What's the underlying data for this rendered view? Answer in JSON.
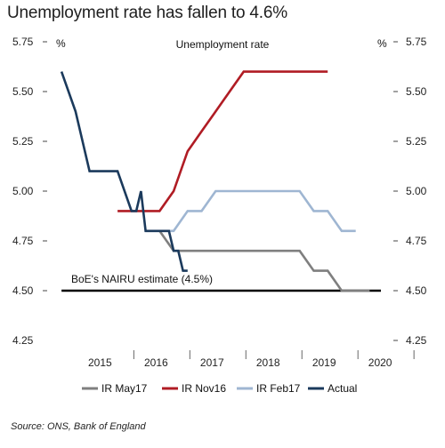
{
  "header": {
    "title": "Unemployment rate has fallen to 4.6%"
  },
  "footer": {
    "source": "Source: ONS, Bank of England"
  },
  "chart_data": {
    "type": "line",
    "title": "Unemployment rate",
    "ylabel_left": "%",
    "ylabel_right": "%",
    "ylim": [
      4.25,
      5.75
    ],
    "yticks": [
      4.25,
      4.5,
      4.75,
      5.0,
      5.25,
      5.5,
      5.75
    ],
    "ytick_labels": [
      "4.25",
      "4.50",
      "4.75",
      "5.00",
      "5.25",
      "5.50",
      "5.75"
    ],
    "xlim": [
      2014.7,
      2020.45
    ],
    "xticks": [
      2015,
      2016,
      2017,
      2018,
      2019,
      2020
    ],
    "xtick_labels": [
      "2015",
      "2016",
      "2017",
      "2018",
      "2019",
      "2020"
    ],
    "grid": false,
    "legend_position": "bottom",
    "annotation": {
      "text": "BoE's NAIRU estimate (4.5%)",
      "value": 4.5
    },
    "colors": {
      "ir_may17": "#7f7f7f",
      "ir_nov16": "#b01c24",
      "ir_feb17": "#9fb6d2",
      "actual": "#1b3a5c",
      "nairu": "#000000"
    },
    "series": [
      {
        "name": "IR May17",
        "x": [
          2016.5,
          2016.75,
          2017.0,
          2017.25,
          2017.5,
          2017.75,
          2018.0,
          2018.25,
          2018.5,
          2018.75,
          2019.0,
          2019.25,
          2019.5,
          2019.75,
          2020.0,
          2020.25
        ],
        "y": [
          4.8,
          4.7,
          4.7,
          4.7,
          4.7,
          4.7,
          4.7,
          4.7,
          4.7,
          4.7,
          4.7,
          4.6,
          4.6,
          4.5,
          4.5,
          4.5
        ]
      },
      {
        "name": "IR Nov16",
        "x": [
          2015.75,
          2016.0,
          2016.25,
          2016.5,
          2016.75,
          2017.0,
          2017.25,
          2017.5,
          2017.75,
          2018.0,
          2018.25,
          2018.5,
          2018.75,
          2019.0,
          2019.25,
          2019.5
        ],
        "y": [
          4.9,
          4.9,
          4.9,
          4.9,
          5.0,
          5.2,
          5.3,
          5.4,
          5.5,
          5.6,
          5.6,
          5.6,
          5.6,
          5.6,
          5.6,
          5.6
        ]
      },
      {
        "name": "IR Feb17",
        "x": [
          2016.25,
          2016.5,
          2016.75,
          2017.0,
          2017.25,
          2017.5,
          2017.75,
          2018.0,
          2018.25,
          2018.5,
          2018.75,
          2019.0,
          2019.25,
          2019.5,
          2019.75,
          2020.0
        ],
        "y": [
          4.8,
          4.8,
          4.8,
          4.9,
          4.9,
          5.0,
          5.0,
          5.0,
          5.0,
          5.0,
          5.0,
          5.0,
          4.9,
          4.9,
          4.8,
          4.8
        ]
      },
      {
        "name": "Actual",
        "x": [
          2014.75,
          2015.0,
          2015.25,
          2015.5,
          2015.75,
          2016.0,
          2016.083,
          2016.167,
          2016.25,
          2016.333,
          2016.417,
          2016.5,
          2016.583,
          2016.667,
          2016.75,
          2016.833,
          2016.917,
          2017.0
        ],
        "y": [
          5.6,
          5.4,
          5.1,
          5.1,
          5.1,
          4.9,
          4.9,
          5.0,
          4.8,
          4.8,
          4.8,
          4.8,
          4.8,
          4.8,
          4.7,
          4.7,
          4.6,
          4.6
        ]
      }
    ],
    "nairu": {
      "x": [
        2014.75,
        2020.45
      ],
      "y": [
        4.5,
        4.5
      ]
    }
  }
}
